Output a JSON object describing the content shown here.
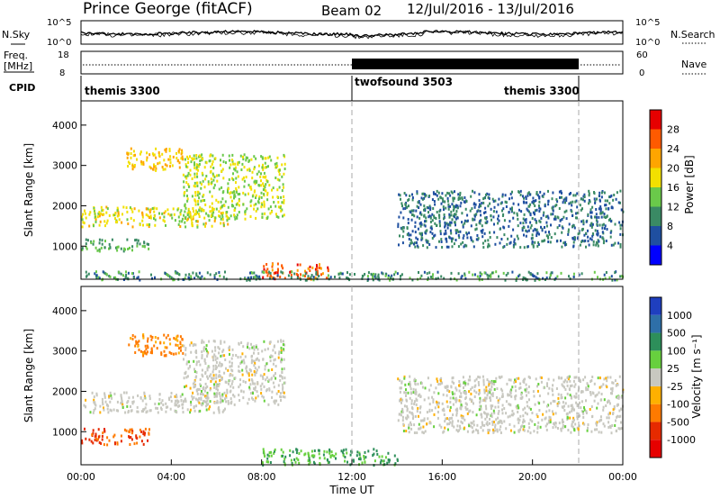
{
  "header": {
    "station": "Prince George (fitACF)",
    "beam": "Beam 02",
    "dates": "12/Jul/2016 - 13/Jul/2016"
  },
  "noise_panel": {
    "left_label": "N.Sky",
    "right_label": "N.Search",
    "ticks": [
      "10^5",
      "10^0"
    ]
  },
  "freq_panel": {
    "left_label_1": "Freq.",
    "left_label_2": "[MHz]",
    "left_ticks": [
      "18",
      "8"
    ],
    "right_ticks": [
      "60",
      "0"
    ],
    "right_label": "Nave"
  },
  "cpid_panel": {
    "label": "CPID",
    "segments": [
      {
        "name": "themis 3300",
        "start_hour": 0,
        "end_hour": 12
      },
      {
        "name": "twofsound 3503",
        "start_hour": 12,
        "end_hour": 22
      },
      {
        "name": "themis 3300",
        "start_hour": 22,
        "end_hour": 24
      }
    ]
  },
  "chart_data": [
    {
      "type": "heatmap",
      "quantity": "Power",
      "ylabel": "Slant Range [km]",
      "ylim": [
        180,
        4600
      ],
      "yticks": [
        1000,
        2000,
        3000,
        4000
      ],
      "xlim": [
        0,
        24
      ],
      "colorbar": {
        "label": "Power [dB]",
        "ticks": [
          "4",
          "8",
          "12",
          "16",
          "20",
          "24",
          "28"
        ]
      },
      "regions": [
        {
          "x": [
            0.0,
            6.5
          ],
          "y": [
            1500,
            2000
          ],
          "value_db": 18
        },
        {
          "x": [
            2.0,
            4.5
          ],
          "y": [
            2900,
            3450
          ],
          "value_db": 20
        },
        {
          "x": [
            4.5,
            9.0
          ],
          "y": [
            1700,
            3300
          ],
          "value_db": 16
        },
        {
          "x": [
            8.0,
            11.0
          ],
          "y": [
            200,
            600
          ],
          "value_db": 26
        },
        {
          "x": [
            0.0,
            24.0
          ],
          "y": [
            180,
            400
          ],
          "value_db": 10
        },
        {
          "x": [
            14.0,
            24.0
          ],
          "y": [
            1000,
            2400
          ],
          "value_db": 8
        },
        {
          "x": [
            0.0,
            3.0
          ],
          "y": [
            900,
            1200
          ],
          "value_db": 12
        }
      ]
    },
    {
      "type": "heatmap",
      "quantity": "Velocity",
      "ylabel": "Slant Range [km]",
      "ylim": [
        180,
        4600
      ],
      "yticks": [
        1000,
        2000,
        3000,
        4000
      ],
      "xlim": [
        0,
        24
      ],
      "xlabel": "Time UT",
      "xticks": [
        "00:00",
        "04:00",
        "08:00",
        "12:00",
        "16:00",
        "20:00",
        "00:00"
      ],
      "colorbar": {
        "label": "Velocity [m s⁻¹]",
        "ticks": [
          "1000",
          "500",
          "100",
          "25",
          "-25",
          "-100",
          "-500",
          "-1000"
        ]
      },
      "regions": [
        {
          "x": [
            0.0,
            6.5
          ],
          "y": [
            1500,
            2000
          ],
          "value_ms": 0
        },
        {
          "x": [
            2.0,
            4.5
          ],
          "y": [
            2900,
            3450
          ],
          "value_ms": -80
        },
        {
          "x": [
            4.5,
            9.0
          ],
          "y": [
            1700,
            3300
          ],
          "value_ms": 0
        },
        {
          "x": [
            0.0,
            3.0
          ],
          "y": [
            700,
            1100
          ],
          "value_ms": -300
        },
        {
          "x": [
            8.0,
            14.0
          ],
          "y": [
            200,
            600
          ],
          "value_ms": 60
        },
        {
          "x": [
            14.0,
            24.0
          ],
          "y": [
            1000,
            2400
          ],
          "value_ms": 0
        }
      ]
    }
  ],
  "colors": {
    "power": [
      "#0000ff",
      "#1f4fa0",
      "#3a8a64",
      "#6ac94a",
      "#f2e000",
      "#ffa500",
      "#ff5a00",
      "#e60000"
    ],
    "velocity": [
      "#1f3fbf",
      "#2e6fa8",
      "#2d8f5a",
      "#67d03e",
      "#c8c8c0",
      "#ffb000",
      "#ff7a00",
      "#e62a00",
      "#e60000"
    ]
  }
}
